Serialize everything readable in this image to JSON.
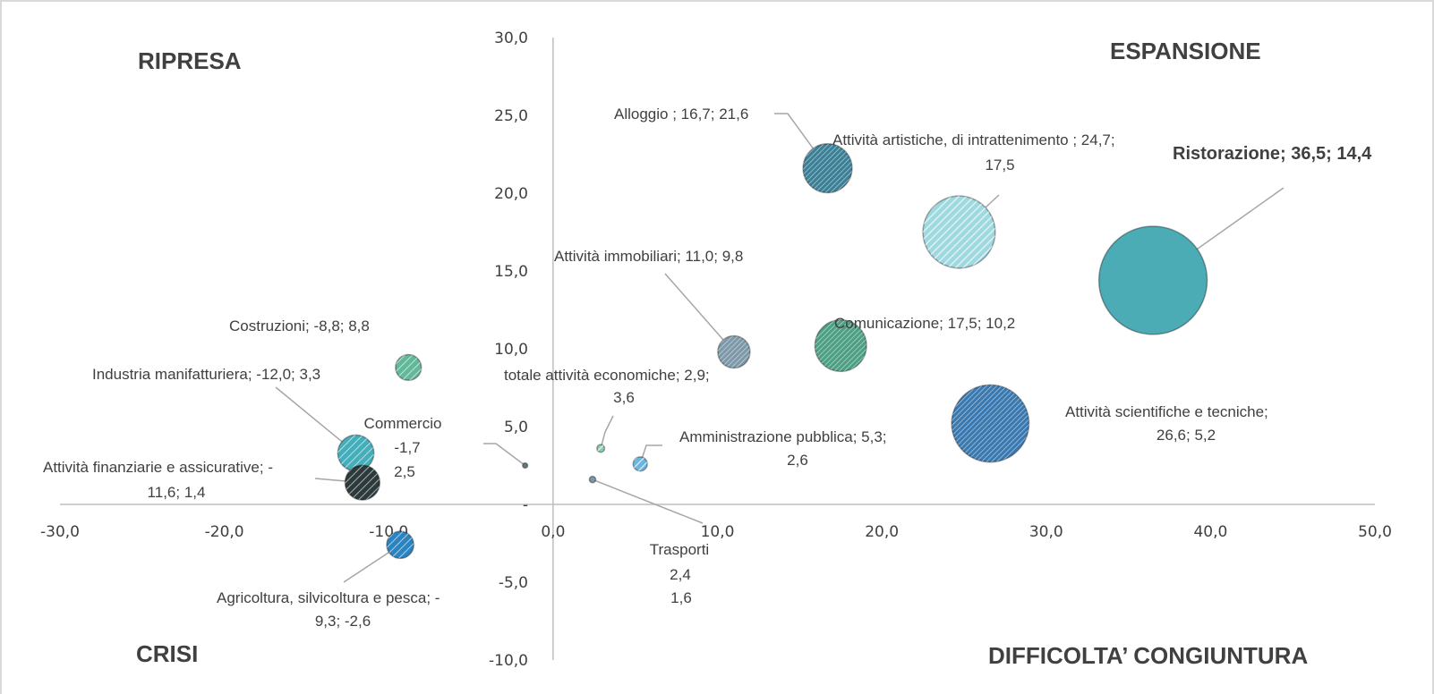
{
  "chart_data": {
    "type": "bubble",
    "xlim": [
      -30,
      50
    ],
    "ylim": [
      -10,
      30
    ],
    "x_ticks": [
      "-30,0",
      "-20,0",
      "-10,0",
      "0,0",
      "10,0",
      "20,0",
      "30,0",
      "40,0",
      "50,0"
    ],
    "y_ticks": [
      "30,0",
      "25,0",
      "20,0",
      "15,0",
      "10,0",
      "5,0",
      "-",
      "-5,0",
      "-10,0"
    ],
    "quadrants": {
      "top_left": "RIPRESA",
      "top_right": "ESPANSIONE",
      "bottom_left": "CRISI",
      "bottom_right": "DIFFICOLTA’ CONGIUNTURA"
    },
    "points": [
      {
        "id": "ristorazione",
        "x": 36.5,
        "y": 14.4,
        "size": 84,
        "color": "#4bacb6",
        "pattern": "solid",
        "bold": true,
        "label": [
          "Ristorazione; 36,5;  14,4"
        ]
      },
      {
        "id": "scientifiche",
        "x": 26.6,
        "y": 5.2,
        "size": 60,
        "color": "#3a78b0",
        "pattern": "dense",
        "label": [
          "Attività  scientifiche e tecniche;",
          "26,6;  5,2"
        ]
      },
      {
        "id": "artistiche",
        "x": 24.7,
        "y": 17.5,
        "size": 56,
        "color": "#9fd9e0",
        "pattern": "light",
        "label": [
          "Attività artistiche, di intrattenimento ; 24,7;",
          "17,5"
        ]
      },
      {
        "id": "alloggio",
        "x": 16.7,
        "y": 21.6,
        "size": 38,
        "color": "#3a7f96",
        "pattern": "dense",
        "label": [
          "Alloggio ; 16,7;  21,6"
        ]
      },
      {
        "id": "comunicazione",
        "x": 17.5,
        "y": 10.2,
        "size": 40,
        "color": "#4c9f83",
        "pattern": "dense",
        "label": [
          "Comunicazione; 17,5;  10,2"
        ]
      },
      {
        "id": "immobiliari",
        "x": 11.0,
        "y": 9.8,
        "size": 25,
        "color": "#7d98a8",
        "pattern": "dense",
        "label": [
          "Attività immobiliari; 11,0; 9,8"
        ]
      },
      {
        "id": "costruzioni",
        "x": -8.8,
        "y": 8.8,
        "size": 20,
        "color": "#63b89a",
        "pattern": "medium",
        "label": [
          "Costruzioni; -8,8;  8,8"
        ]
      },
      {
        "id": "manifatturiera",
        "x": -12.0,
        "y": 3.3,
        "size": 28,
        "color": "#44aebb",
        "pattern": "medium",
        "label": [
          "Industria manifatturiera; -12,0;  3,3"
        ]
      },
      {
        "id": "finanziarie",
        "x": -11.6,
        "y": 1.4,
        "size": 27,
        "color": "#2c3a3c",
        "pattern": "medium",
        "label": [
          "Attività finanziarie e assicurative; -",
          "11,6; 1,4"
        ]
      },
      {
        "id": "commercio",
        "x": -1.7,
        "y": 2.5,
        "size": 4,
        "color": "#5f7c80",
        "pattern": "solid",
        "label": [
          "Commercio",
          "-1,7",
          "2,5"
        ]
      },
      {
        "id": "agricoltura",
        "x": -9.3,
        "y": -2.6,
        "size": 21,
        "color": "#2a84c0",
        "pattern": "medium",
        "label": [
          "Agricoltura, silvicoltura e pesca; -",
          "9,3; -2,6"
        ]
      },
      {
        "id": "totale",
        "x": 2.9,
        "y": 3.6,
        "size": 6,
        "color": "#8fcfb0",
        "pattern": "light",
        "label": [
          "totale attività economiche; 2,9;",
          "3,6"
        ]
      },
      {
        "id": "amministrazione",
        "x": 5.3,
        "y": 2.6,
        "size": 11,
        "color": "#6bb6e0",
        "pattern": "light",
        "label": [
          "Amministrazione pubblica; 5,3;",
          "2,6"
        ]
      },
      {
        "id": "trasporti",
        "x": 2.4,
        "y": 1.6,
        "size": 5,
        "color": "#7d98a8",
        "pattern": "solid",
        "label": [
          "Trasporti",
          "2,4",
          "1,6"
        ]
      }
    ]
  }
}
